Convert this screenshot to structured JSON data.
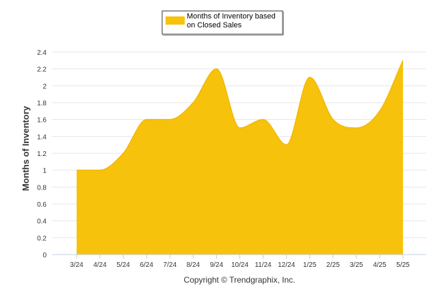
{
  "chart_data": {
    "type": "area",
    "title": "",
    "xlabel": "",
    "ylabel": "Months of Inventory",
    "categories": [
      "3/24",
      "4/24",
      "5/24",
      "6/24",
      "7/24",
      "8/24",
      "9/24",
      "10/24",
      "11/24",
      "12/24",
      "1/25",
      "2/25",
      "3/25",
      "4/25",
      "5/25"
    ],
    "series": [
      {
        "name": "Months of Inventory based on Closed Sales",
        "legend_lines": [
          "Months of Inventory based",
          "on Closed Sales"
        ],
        "color": "#f7c20b",
        "values": [
          1.0,
          1.0,
          1.2,
          1.6,
          1.6,
          1.8,
          2.2,
          1.5,
          1.6,
          1.3,
          2.1,
          1.6,
          1.5,
          1.7,
          2.3
        ]
      }
    ],
    "ylim": [
      0,
      2.4
    ],
    "yticks": [
      0,
      0.2,
      0.4,
      0.6,
      0.8,
      1,
      1.2,
      1.4,
      1.6,
      1.8,
      2,
      2.2,
      2.4
    ],
    "grid": true,
    "legend_position": "top-center",
    "footer": "Copyright © Trendgraphix, Inc."
  }
}
